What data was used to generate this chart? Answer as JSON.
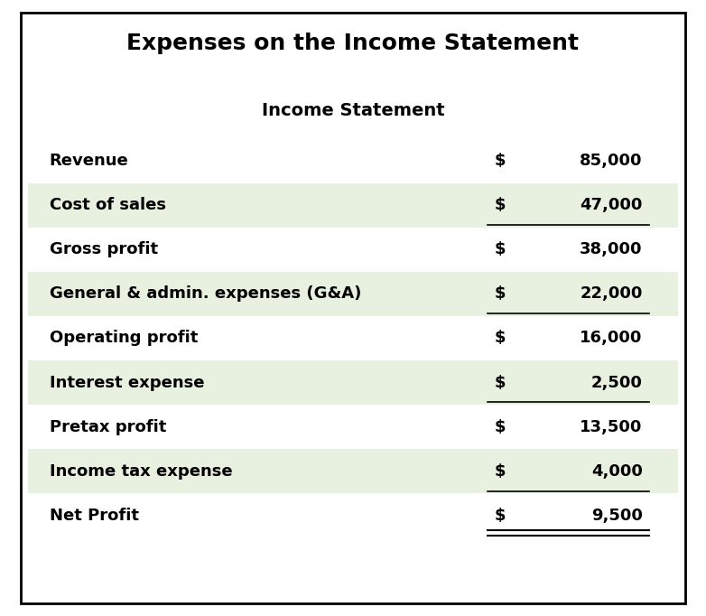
{
  "title": "Expenses on the Income Statement",
  "subtitle": "Income Statement",
  "rows": [
    {
      "label": "Revenue",
      "dollar": "$",
      "value": "85,000",
      "shaded": false,
      "double_underline": false,
      "underline": false
    },
    {
      "label": "Cost of sales",
      "dollar": "$",
      "value": "47,000",
      "shaded": true,
      "double_underline": false,
      "underline": true
    },
    {
      "label": "Gross profit",
      "dollar": "$",
      "value": "38,000",
      "shaded": false,
      "double_underline": false,
      "underline": false
    },
    {
      "label": "General & admin. expenses (G&A)",
      "dollar": "$",
      "value": "22,000",
      "shaded": true,
      "double_underline": false,
      "underline": true
    },
    {
      "label": "Operating profit",
      "dollar": "$",
      "value": "16,000",
      "shaded": false,
      "double_underline": false,
      "underline": false
    },
    {
      "label": "Interest expense",
      "dollar": "$",
      "value": "2,500",
      "shaded": true,
      "double_underline": false,
      "underline": true
    },
    {
      "label": "Pretax profit",
      "dollar": "$",
      "value": "13,500",
      "shaded": false,
      "double_underline": false,
      "underline": false
    },
    {
      "label": "Income tax expense",
      "dollar": "$",
      "value": "4,000",
      "shaded": true,
      "double_underline": false,
      "underline": true
    },
    {
      "label": "Net Profit",
      "dollar": "$",
      "value": "9,500",
      "shaded": false,
      "double_underline": true,
      "underline": false
    }
  ],
  "shaded_color": "#e8f0e0",
  "background_color": "#ffffff",
  "border_color": "#000000",
  "title_fontsize": 18,
  "subtitle_fontsize": 14,
  "row_fontsize": 13,
  "text_color": "#000000"
}
